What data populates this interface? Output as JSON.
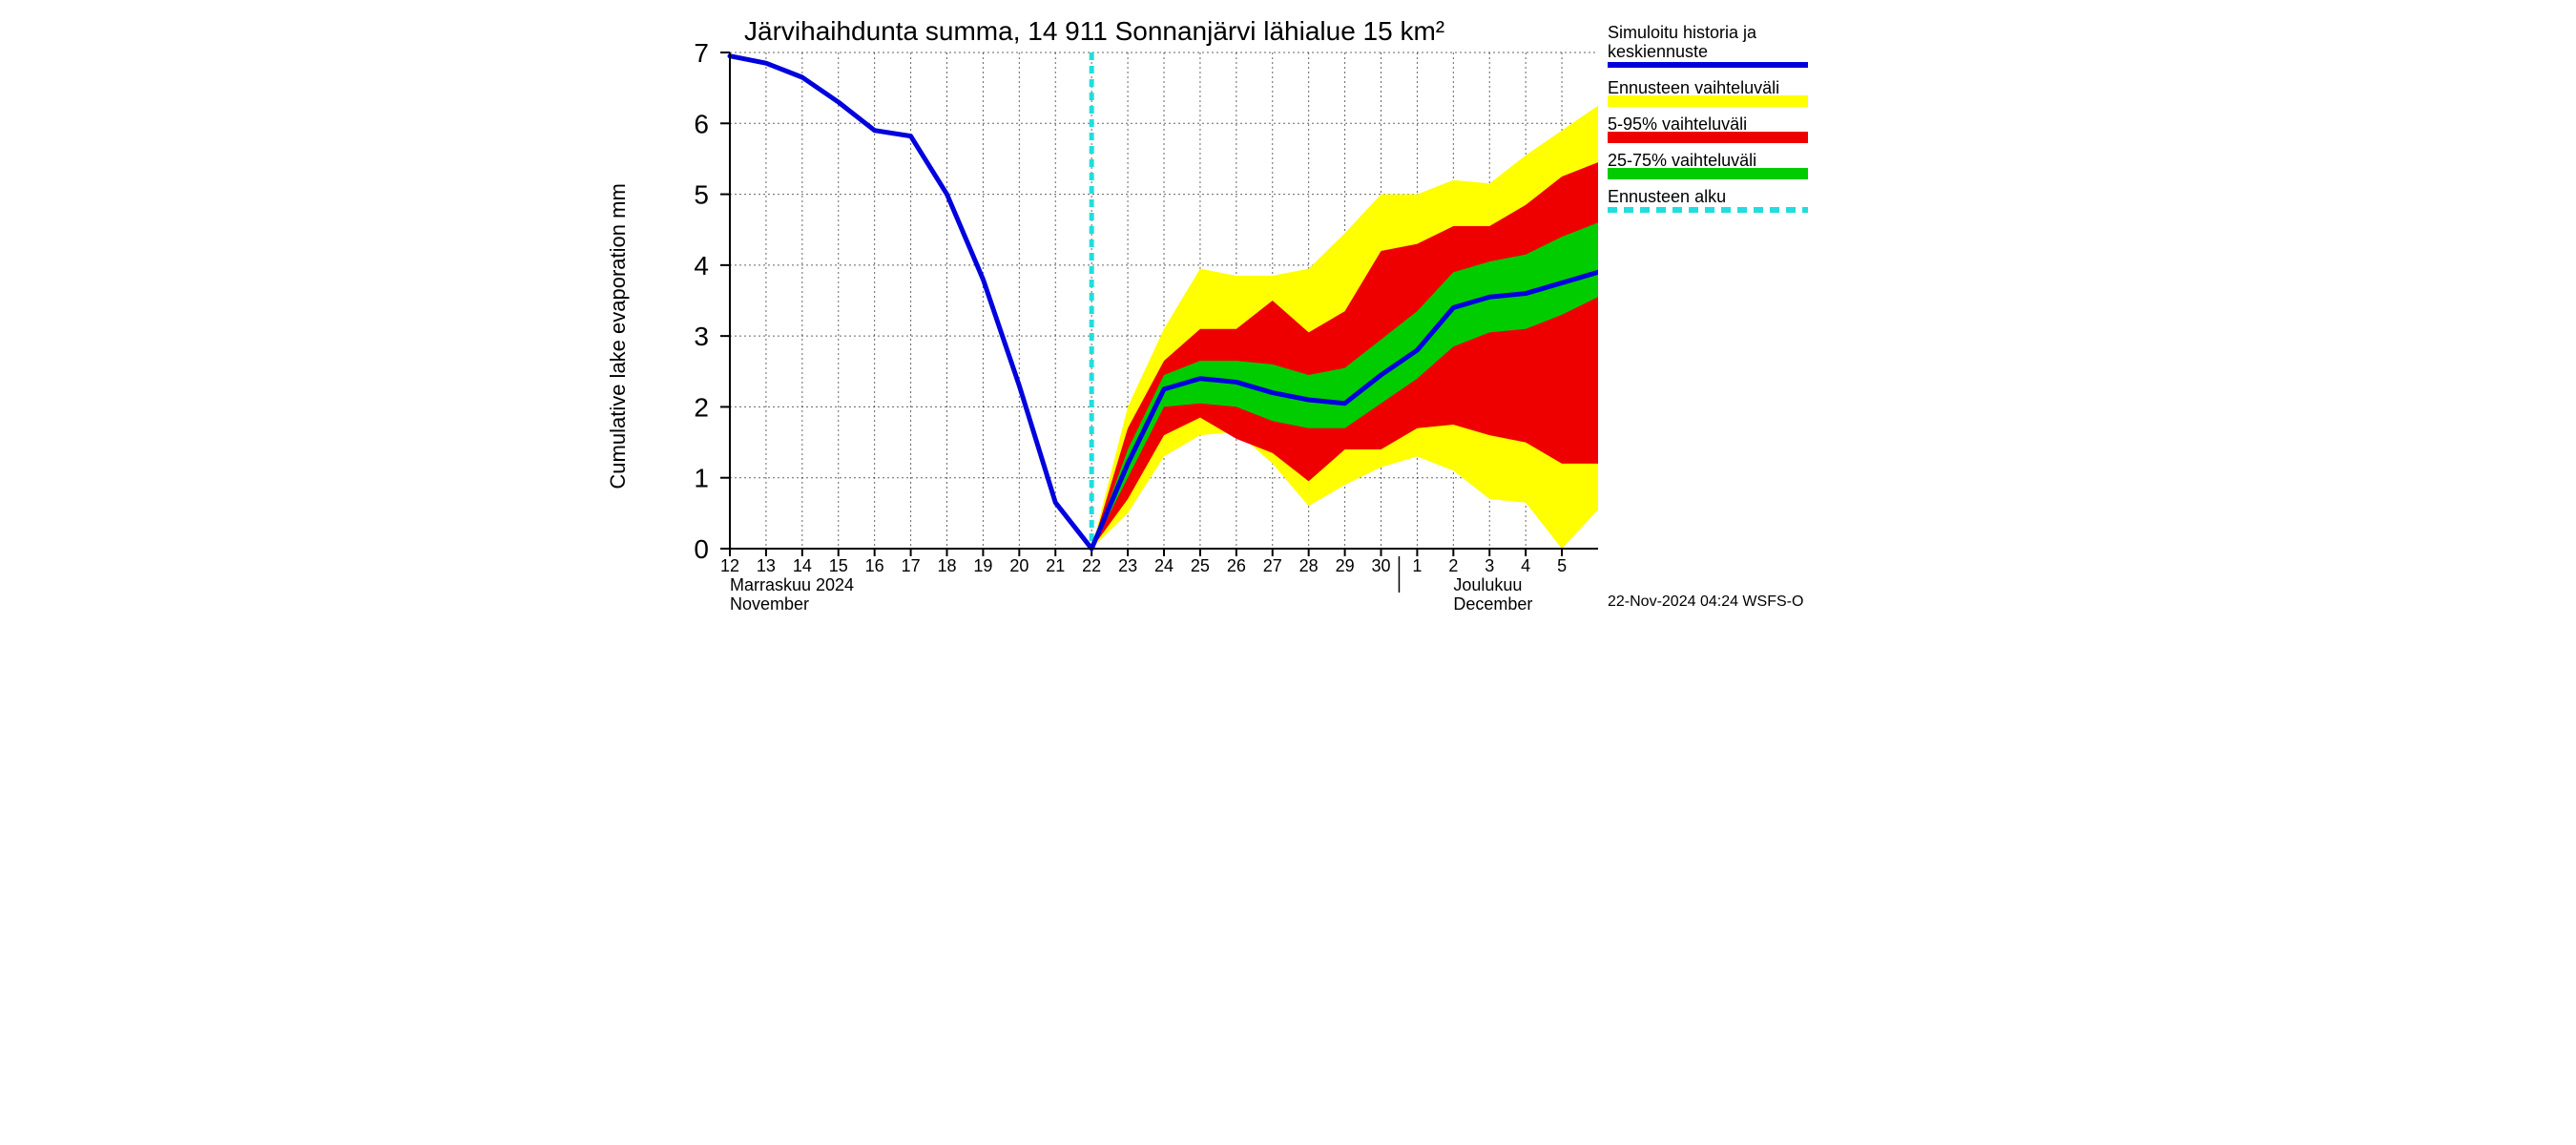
{
  "chart": {
    "type": "line-with-bands",
    "title": "Järvihaihdunta summa, 14 911 Sonnanjärvi lähialue 15 km²",
    "ylabel": "Cumulative lake evaporation   mm",
    "footer": "22-Nov-2024 04:24 WSFS-O",
    "colors": {
      "background": "#ffffff",
      "history_line": "#0000dd",
      "band_outer": "#ffff00",
      "band_595": "#ee0000",
      "band_2575": "#00cc00",
      "forecast_start": "#22dddd",
      "grid": "#000000",
      "text": "#000000"
    },
    "ylim": [
      0,
      7
    ],
    "yticks": [
      0,
      1,
      2,
      3,
      4,
      5,
      6,
      7
    ],
    "xticks": [
      12,
      13,
      14,
      15,
      16,
      17,
      18,
      19,
      20,
      21,
      22,
      23,
      24,
      25,
      26,
      27,
      28,
      29,
      30,
      1,
      2,
      3,
      4,
      5
    ],
    "month_labels": [
      {
        "fi": "Marraskuu 2024",
        "en": "November",
        "at_x": 12
      },
      {
        "fi": "Joulukuu",
        "en": "December",
        "at_x": 32
      }
    ],
    "forecast_start_x": 22,
    "history": {
      "x": [
        12,
        13,
        14,
        15,
        16,
        17,
        18,
        19,
        20,
        21,
        22
      ],
      "y": [
        6.95,
        6.85,
        6.65,
        6.3,
        5.9,
        5.82,
        5.0,
        3.8,
        2.3,
        0.65,
        0.0
      ]
    },
    "forecast_mean": {
      "x": [
        22,
        23,
        24,
        25,
        26,
        27,
        28,
        29,
        30,
        31,
        32,
        33,
        34,
        35,
        36
      ],
      "y": [
        0.0,
        1.2,
        2.25,
        2.4,
        2.35,
        2.2,
        2.1,
        2.05,
        2.45,
        2.8,
        3.4,
        3.55,
        3.6,
        3.75,
        3.9
      ]
    },
    "band_2575": {
      "x": [
        22,
        23,
        24,
        25,
        26,
        27,
        28,
        29,
        30,
        31,
        32,
        33,
        34,
        35,
        36
      ],
      "low": [
        0.0,
        1.0,
        2.0,
        2.05,
        2.0,
        1.8,
        1.7,
        1.7,
        2.05,
        2.4,
        2.85,
        3.05,
        3.1,
        3.3,
        3.55
      ],
      "high": [
        0.0,
        1.4,
        2.45,
        2.65,
        2.65,
        2.6,
        2.45,
        2.55,
        2.95,
        3.35,
        3.9,
        4.05,
        4.15,
        4.4,
        4.6
      ]
    },
    "band_595": {
      "x": [
        22,
        23,
        24,
        25,
        26,
        27,
        28,
        29,
        30,
        31,
        32,
        33,
        34,
        35,
        36
      ],
      "low": [
        0.0,
        0.7,
        1.6,
        1.85,
        1.55,
        1.35,
        0.95,
        1.4,
        1.4,
        1.7,
        1.75,
        1.6,
        1.5,
        1.2,
        1.2
      ],
      "high": [
        0.0,
        1.7,
        2.65,
        3.1,
        3.1,
        3.5,
        3.05,
        3.35,
        4.2,
        4.3,
        4.55,
        4.55,
        4.85,
        5.25,
        5.45
      ]
    },
    "band_outer": {
      "x": [
        22,
        23,
        24,
        25,
        26,
        27,
        28,
        29,
        30,
        31,
        32,
        33,
        34,
        35,
        36
      ],
      "low": [
        0.0,
        0.5,
        1.3,
        1.6,
        1.65,
        1.2,
        0.6,
        0.9,
        1.15,
        1.3,
        1.1,
        0.7,
        0.65,
        0.0,
        0.55
      ],
      "high": [
        0.0,
        2.0,
        3.1,
        3.95,
        3.85,
        3.85,
        3.95,
        4.45,
        5.0,
        5.0,
        5.2,
        5.15,
        5.55,
        5.9,
        6.25
      ]
    },
    "legend": [
      {
        "key": "history",
        "label1": "Simuloitu historia ja",
        "label2": "keskiennuste"
      },
      {
        "key": "outer",
        "label1": "Ennusteen vaihteluväli"
      },
      {
        "key": "r595",
        "label1": "5-95% vaihteluväli"
      },
      {
        "key": "r2575",
        "label1": "25-75% vaihteluväli"
      },
      {
        "key": "fstart",
        "label1": "Ennusteen alku"
      }
    ],
    "line_widths": {
      "history": 5,
      "mean": 5,
      "forecast_dash": 5
    },
    "title_fontsize": 28,
    "label_fontsize": 22,
    "tick_fontsize": 28,
    "xtick_fontsize": 18
  }
}
